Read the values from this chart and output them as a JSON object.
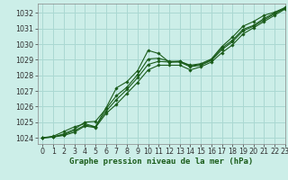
{
  "title": "Graphe pression niveau de la mer (hPa)",
  "bg_color": "#cceee8",
  "grid_color": "#aad8d2",
  "line_color": "#1a5c1a",
  "marker_color": "#1a5c1a",
  "xlim": [
    -0.5,
    23
  ],
  "ylim": [
    1023.6,
    1032.6
  ],
  "xticks": [
    0,
    1,
    2,
    3,
    4,
    5,
    6,
    7,
    8,
    9,
    10,
    11,
    12,
    13,
    14,
    15,
    16,
    17,
    18,
    19,
    20,
    21,
    22,
    23
  ],
  "yticks": [
    1024,
    1025,
    1026,
    1027,
    1028,
    1029,
    1030,
    1031,
    1032
  ],
  "series": [
    [
      1024.0,
      1024.1,
      1024.4,
      1024.7,
      1024.9,
      1024.7,
      1025.9,
      1027.2,
      1027.6,
      1028.3,
      1029.6,
      1029.4,
      1028.85,
      1028.9,
      1028.65,
      1028.75,
      1029.05,
      1029.85,
      1030.45,
      1031.15,
      1031.45,
      1031.85,
      1032.05,
      1032.35
    ],
    [
      1024.0,
      1024.05,
      1024.15,
      1024.35,
      1024.75,
      1024.65,
      1025.55,
      1026.15,
      1026.85,
      1027.55,
      1028.35,
      1028.65,
      1028.65,
      1028.65,
      1028.35,
      1028.55,
      1028.85,
      1029.45,
      1029.95,
      1030.65,
      1031.05,
      1031.45,
      1031.85,
      1032.25
    ],
    [
      1024.0,
      1024.05,
      1024.2,
      1024.45,
      1024.8,
      1024.7,
      1025.7,
      1026.45,
      1027.1,
      1027.85,
      1028.7,
      1028.9,
      1028.85,
      1028.85,
      1028.55,
      1028.65,
      1028.95,
      1029.65,
      1030.15,
      1030.85,
      1031.15,
      1031.55,
      1031.95,
      1032.3
    ],
    [
      1024.0,
      1024.05,
      1024.25,
      1024.55,
      1025.0,
      1025.05,
      1025.85,
      1026.7,
      1027.25,
      1028.05,
      1029.05,
      1029.1,
      1028.9,
      1028.9,
      1028.6,
      1028.7,
      1029.0,
      1029.75,
      1030.25,
      1030.95,
      1031.2,
      1031.65,
      1032.0,
      1032.3
    ]
  ],
  "xlabel_fontsize": 6.5,
  "tick_fontsize": 5.8
}
